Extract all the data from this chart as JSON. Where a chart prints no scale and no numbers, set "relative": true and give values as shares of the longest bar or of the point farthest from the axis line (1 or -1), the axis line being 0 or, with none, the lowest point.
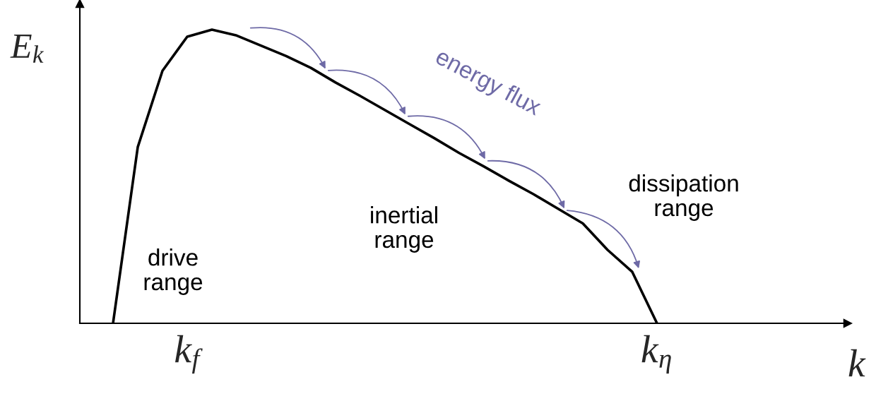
{
  "chart_data": {
    "type": "line",
    "relative": true,
    "xlabel": "k",
    "ylabel": "E$_{k}$",
    "categories": [
      null,
      null,
      null,
      "k$_{f}$",
      null,
      null,
      null,
      null,
      null,
      null,
      null,
      null,
      null,
      null,
      null,
      null,
      null,
      null,
      null,
      null,
      null,
      null,
      "k$_{η}$"
    ],
    "series": [
      {
        "color": "#000000",
        "values": [
          0,
          0.6,
          0.86,
          0.976,
          1.0,
          0.98,
          0.945,
          0.91,
          0.87,
          0.82,
          0.774,
          0.726,
          0.678,
          0.63,
          0.58,
          0.534,
          0.486,
          0.44,
          0.39,
          0.34,
          0.25,
          0.175,
          0
        ]
      }
    ],
    "annotations": [
      "drive\nrange",
      "inertial\nrange",
      "dissipation\nrange",
      "energy flux"
    ],
    "grid": false,
    "legend": false,
    "marker": "none",
    "line_style": "solid"
  }
}
